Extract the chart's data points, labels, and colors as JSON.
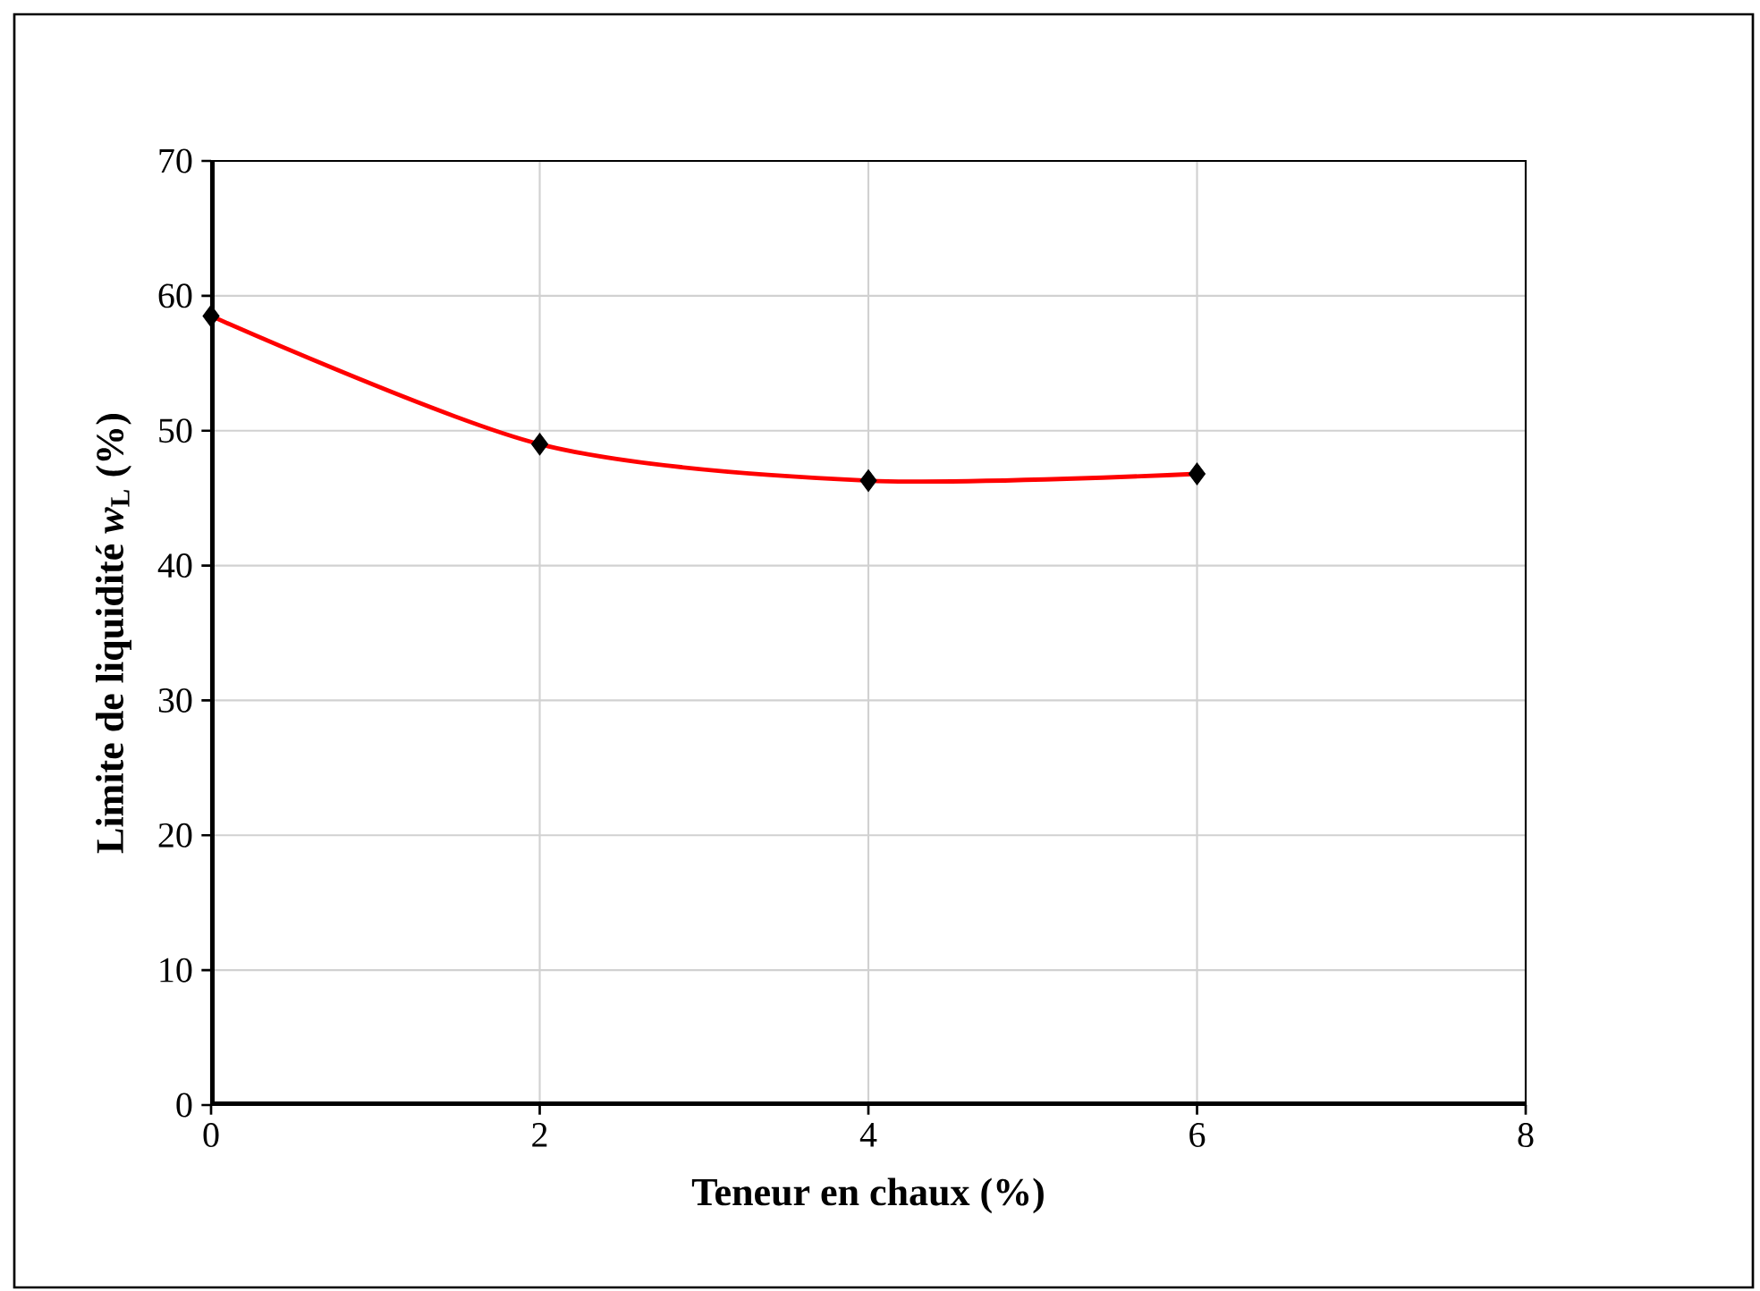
{
  "chart_data": {
    "type": "line",
    "xlabel": "Teneur en chaux (%)",
    "ylabel": "Limite de liquidité *w*$_{L}$ (%)",
    "x": [
      0,
      2,
      4,
      6
    ],
    "series": [
      {
        "color": "#ff0000",
        "values": [
          58.5,
          49,
          46.3,
          46.8
        ]
      }
    ],
    "marker": "diamond",
    "line_style": "solid",
    "xlim": [
      0,
      8
    ],
    "ylim": [
      0,
      70
    ],
    "xticks": [
      0,
      2,
      4,
      6,
      8
    ],
    "yticks": [
      0,
      10,
      20,
      30,
      40,
      50,
      60,
      70
    ],
    "grid": true
  }
}
